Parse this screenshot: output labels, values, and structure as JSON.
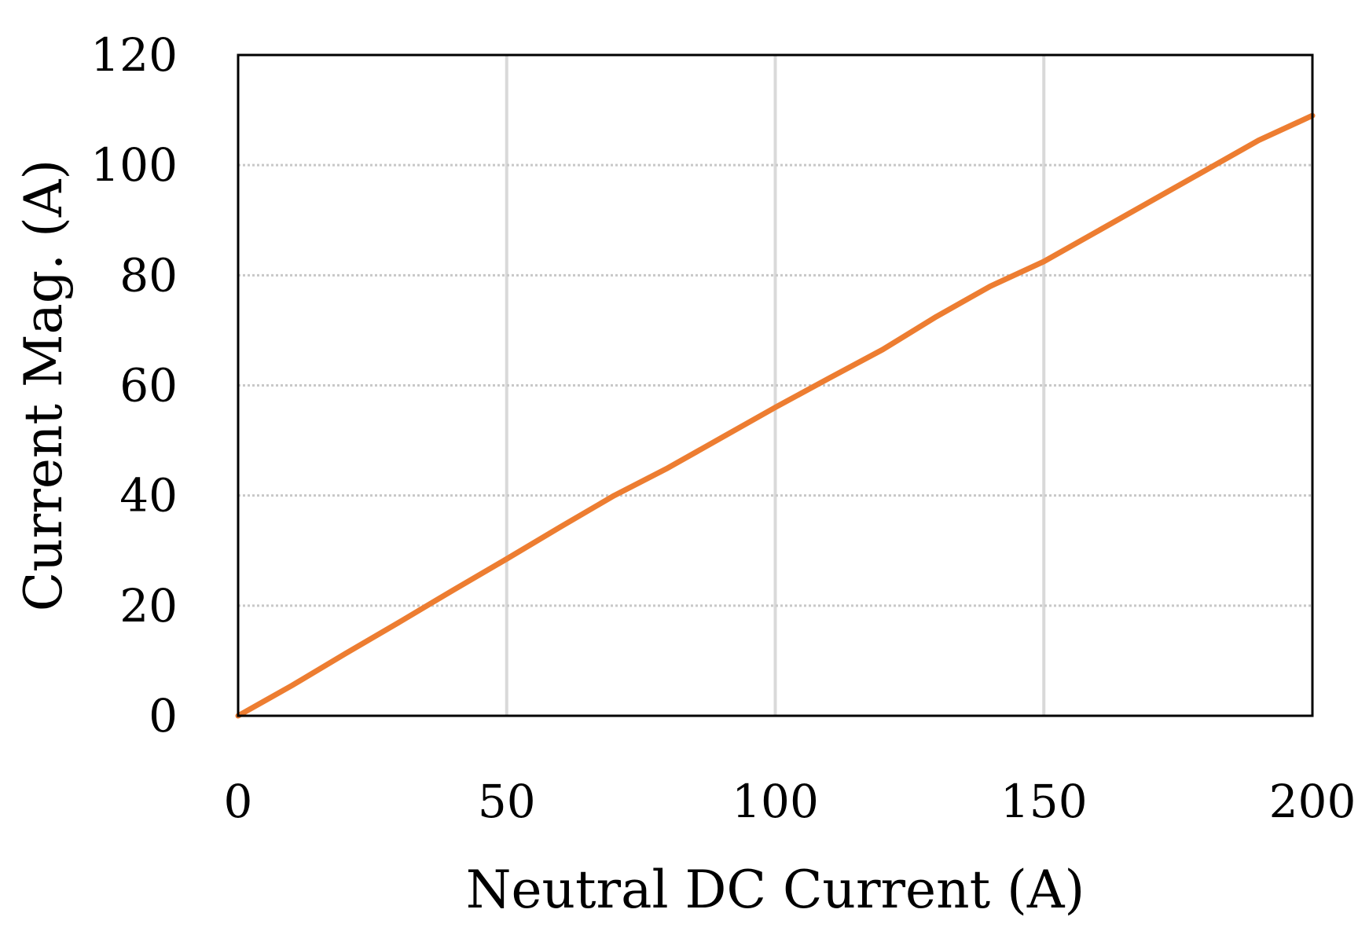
{
  "chart_data": {
    "type": "line",
    "title": "",
    "xlabel": "Neutral DC Current (A)",
    "ylabel": "Current Mag. (A)",
    "xlim": [
      0,
      200
    ],
    "ylim": [
      0,
      120
    ],
    "xticks": [
      0,
      50,
      100,
      150,
      200
    ],
    "yticks": [
      0,
      20,
      40,
      60,
      80,
      100,
      120
    ],
    "x_tick_labels": [
      "0",
      "50",
      "100",
      "150",
      "200"
    ],
    "y_tick_labels": [
      "0",
      "20",
      "40",
      "60",
      "80",
      "100",
      "120"
    ],
    "grid": {
      "vertical": "solid",
      "horizontal": "dotted"
    },
    "legend": "none",
    "series": [
      {
        "color": "#ED7D31",
        "x": [
          0,
          10,
          20,
          30,
          40,
          50,
          60,
          70,
          80,
          90,
          100,
          110,
          120,
          130,
          140,
          150,
          160,
          170,
          180,
          190,
          200
        ],
        "y": [
          0,
          5.5,
          11.3,
          17.0,
          22.8,
          28.5,
          34.3,
          40.0,
          45.0,
          50.5,
          56.0,
          61.3,
          66.5,
          72.5,
          78.0,
          82.5,
          88.0,
          93.5,
          99.0,
          104.5,
          109.0
        ]
      }
    ]
  }
}
